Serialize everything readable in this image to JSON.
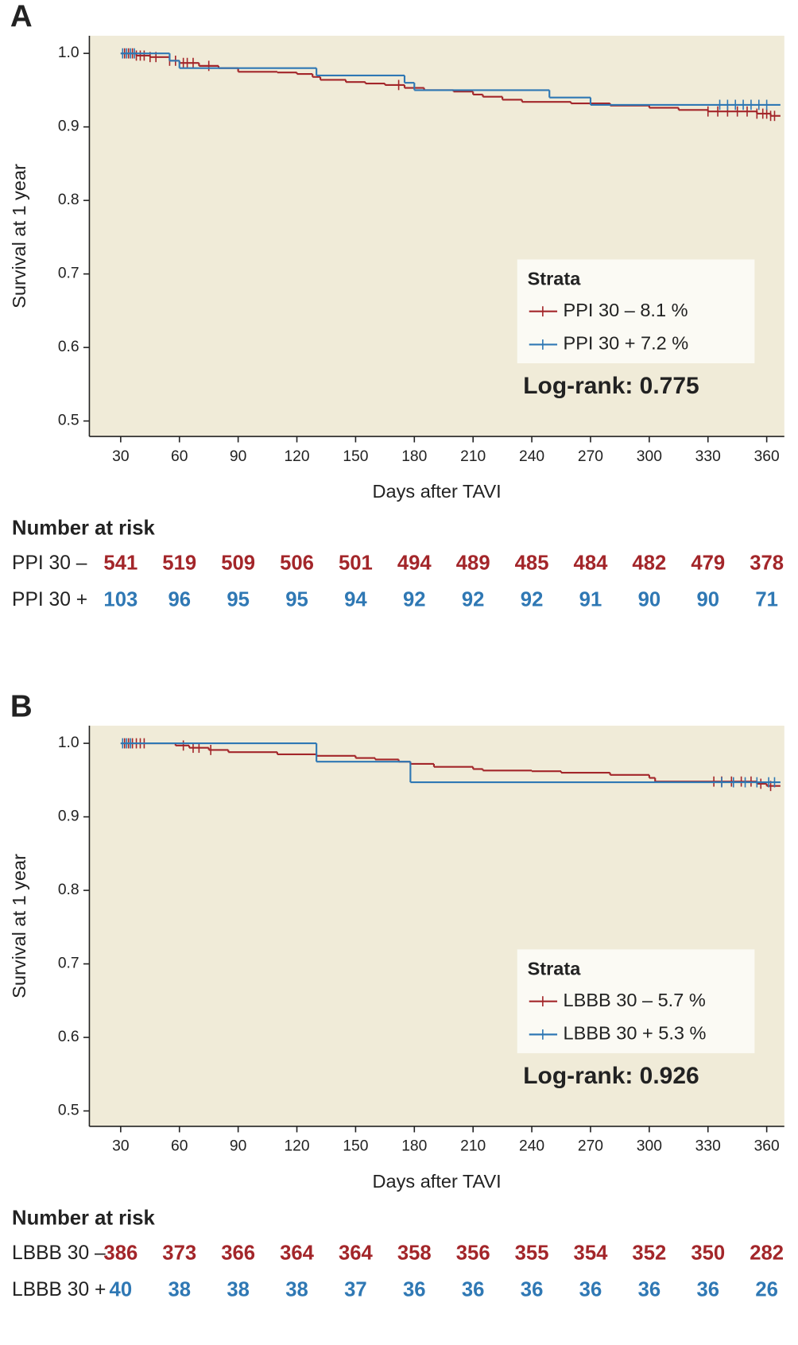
{
  "chart_data": [
    {
      "type": "km",
      "panel": "A",
      "ylabel": "Survival at 1 year",
      "xlabel": "Days after TAVI",
      "xlim": [
        14,
        369
      ],
      "xticks": [
        30,
        60,
        90,
        120,
        150,
        180,
        210,
        240,
        270,
        300,
        330,
        360
      ],
      "ylim": [
        0.479,
        1.024
      ],
      "yticks": [
        0.5,
        0.6,
        0.7,
        0.8,
        0.9,
        {
          "value": 1,
          "label": "1.0"
        }
      ],
      "background": "#f0ebd8",
      "legend_title": "Strata",
      "annotation": "Log-rank: 0.775",
      "series": [
        {
          "name": "PPI 30 – 8.1 %",
          "color": "#a3262a",
          "x": [
            30,
            38,
            45,
            55,
            60,
            70,
            80,
            90,
            110,
            120,
            128,
            132,
            145,
            155,
            165,
            175,
            185,
            200,
            210,
            215,
            225,
            235,
            260,
            280,
            300,
            315,
            330,
            355,
            362,
            367
          ],
          "values": [
            1.0,
            0.997,
            0.995,
            0.99,
            0.987,
            0.983,
            0.98,
            0.975,
            0.974,
            0.972,
            0.968,
            0.964,
            0.961,
            0.959,
            0.957,
            0.953,
            0.95,
            0.948,
            0.944,
            0.941,
            0.937,
            0.934,
            0.932,
            0.929,
            0.926,
            0.923,
            0.921,
            0.918,
            0.915,
            0.915
          ],
          "censored": [
            32,
            34,
            36,
            38,
            40,
            42,
            45,
            48,
            55,
            58,
            62,
            64,
            67,
            75,
            172,
            330,
            335,
            340,
            345,
            350,
            355,
            358,
            360,
            362,
            364
          ]
        },
        {
          "name": "PPI 30 + 7.2 %",
          "color": "#2f78b4",
          "x": [
            30,
            55,
            60,
            130,
            175,
            180,
            249,
            270,
            367
          ],
          "values": [
            1.0,
            0.99,
            0.98,
            0.97,
            0.96,
            0.95,
            0.94,
            0.93,
            0.93
          ],
          "censored": [
            31,
            33,
            35,
            37,
            336,
            340,
            344,
            348,
            352,
            356,
            360
          ]
        }
      ],
      "risk_table": {
        "title": "Number at risk",
        "rows": [
          {
            "name": "PPI 30 –",
            "color": "#a3262a",
            "values": [
              541,
              519,
              509,
              506,
              501,
              494,
              489,
              485,
              484,
              482,
              479,
              378
            ]
          },
          {
            "name": "PPI 30 +",
            "color": "#2f78b4",
            "values": [
              103,
              96,
              95,
              95,
              94,
              92,
              92,
              92,
              91,
              90,
              90,
              71
            ]
          }
        ]
      }
    },
    {
      "type": "km",
      "panel": "B",
      "ylabel": "Survival at 1 year",
      "xlabel": "Days after TAVI",
      "xlim": [
        14,
        369
      ],
      "xticks": [
        30,
        60,
        90,
        120,
        150,
        180,
        210,
        240,
        270,
        300,
        330,
        360
      ],
      "ylim": [
        0.479,
        1.024
      ],
      "yticks": [
        0.5,
        0.6,
        0.7,
        0.8,
        0.9,
        {
          "value": 1,
          "label": "1.0"
        }
      ],
      "background": "#f0ebd8",
      "legend_title": "Strata",
      "annotation": "Log-rank: 0.926",
      "series": [
        {
          "name": "LBBB 30 – 5.7 %",
          "color": "#a3262a",
          "x": [
            30,
            58,
            65,
            75,
            85,
            110,
            130,
            150,
            160,
            172,
            178,
            190,
            210,
            215,
            240,
            255,
            280,
            300,
            303,
            355,
            360,
            367
          ],
          "values": [
            1.0,
            0.997,
            0.994,
            0.991,
            0.988,
            0.985,
            0.983,
            0.98,
            0.978,
            0.975,
            0.972,
            0.968,
            0.965,
            0.963,
            0.962,
            0.96,
            0.957,
            0.953,
            0.948,
            0.945,
            0.942,
            0.942
          ],
          "censored": [
            32,
            34,
            36,
            38,
            40,
            42,
            62,
            67,
            70,
            76,
            333,
            337,
            342,
            347,
            352,
            357,
            362
          ]
        },
        {
          "name": "LBBB 30 + 5.3 %",
          "color": "#2f78b4",
          "x": [
            30,
            130,
            178,
            367
          ],
          "values": [
            1.0,
            0.975,
            0.947,
            0.947
          ],
          "censored": [
            31,
            33,
            35,
            337,
            343,
            349,
            355,
            361,
            364
          ]
        }
      ],
      "risk_table": {
        "title": "Number at risk",
        "rows": [
          {
            "name": "LBBB 30 –",
            "color": "#a3262a",
            "values": [
              386,
              373,
              366,
              364,
              364,
              358,
              356,
              355,
              354,
              352,
              350,
              282
            ]
          },
          {
            "name": "LBBB 30 +",
            "color": "#2f78b4",
            "values": [
              40,
              38,
              38,
              38,
              37,
              36,
              36,
              36,
              36,
              36,
              36,
              26
            ]
          }
        ]
      }
    }
  ]
}
